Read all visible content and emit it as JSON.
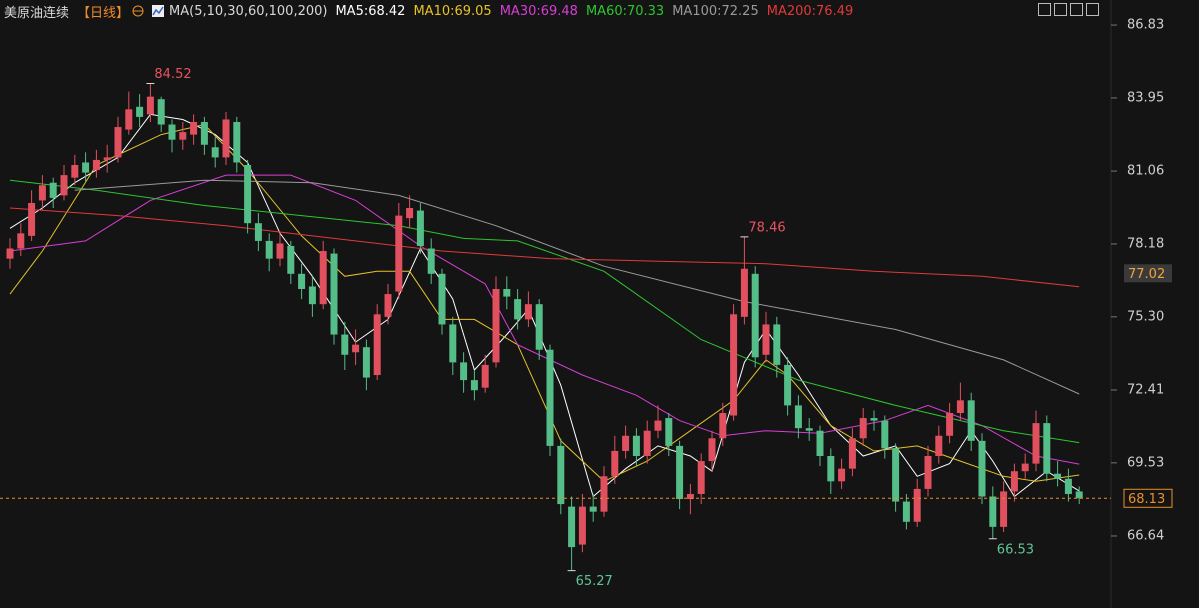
{
  "header": {
    "symbol": "美原油连续",
    "period": "【日线】",
    "ma_params": "MA(5,10,30,60,100,200)"
  },
  "chart_data": {
    "type": "candlestick",
    "up_color": "#e0505e",
    "down_color": "#55bd88",
    "ylim": [
      64.11,
      87.03
    ],
    "yticks": [
      86.83,
      83.95,
      81.06,
      78.18,
      {
        "value": 75.3,
        "label": "75.30"
      },
      72.41,
      69.53,
      66.64
    ],
    "last_price": 68.13,
    "last_color": "#e8902a",
    "axis_marker": 77.02,
    "candles": [
      [
        77.6,
        78.4,
        77.2,
        78.0
      ],
      [
        78.0,
        79.0,
        77.7,
        78.6
      ],
      [
        78.5,
        80.3,
        78.3,
        79.8
      ],
      [
        79.9,
        80.9,
        79.5,
        80.5
      ],
      [
        80.6,
        80.8,
        79.6,
        80.0
      ],
      [
        80.1,
        81.3,
        79.9,
        80.9
      ],
      [
        80.8,
        81.7,
        80.5,
        81.3
      ],
      [
        81.4,
        81.8,
        80.6,
        81.0
      ],
      [
        81.1,
        81.9,
        80.8,
        81.5
      ],
      [
        81.5,
        82.1,
        81.0,
        81.6
      ],
      [
        81.6,
        83.2,
        81.4,
        82.8
      ],
      [
        82.7,
        84.2,
        82.5,
        83.5
      ],
      [
        83.6,
        84.1,
        82.8,
        83.2
      ],
      [
        83.3,
        84.52,
        83.0,
        84.0
      ],
      [
        83.9,
        84.0,
        82.6,
        82.9
      ],
      [
        82.9,
        83.1,
        81.8,
        82.3
      ],
      [
        82.3,
        83.0,
        81.9,
        82.6
      ],
      [
        82.5,
        83.3,
        82.1,
        83.0
      ],
      [
        83.0,
        83.2,
        81.7,
        82.1
      ],
      [
        82.0,
        82.4,
        81.2,
        81.6
      ],
      [
        81.6,
        83.4,
        81.3,
        83.1
      ],
      [
        83.0,
        83.2,
        81.0,
        81.4
      ],
      [
        81.3,
        81.5,
        78.6,
        79.0
      ],
      [
        79.0,
        79.4,
        77.9,
        78.3
      ],
      [
        78.3,
        78.6,
        77.1,
        77.6
      ],
      [
        77.6,
        78.6,
        77.3,
        78.2
      ],
      [
        78.1,
        78.3,
        76.6,
        77.0
      ],
      [
        77.0,
        77.4,
        76.0,
        76.4
      ],
      [
        76.5,
        76.9,
        75.3,
        75.8
      ],
      [
        75.8,
        78.3,
        75.6,
        77.9
      ],
      [
        77.8,
        78.0,
        74.2,
        74.6
      ],
      [
        74.6,
        75.1,
        73.2,
        73.8
      ],
      [
        73.9,
        74.8,
        73.4,
        74.2
      ],
      [
        74.1,
        74.4,
        72.4,
        72.9
      ],
      [
        73.0,
        75.8,
        72.8,
        75.4
      ],
      [
        75.3,
        76.6,
        75.0,
        76.2
      ],
      [
        76.3,
        79.8,
        76.0,
        79.3
      ],
      [
        79.2,
        80.1,
        78.8,
        79.6
      ],
      [
        79.5,
        79.8,
        77.8,
        78.1
      ],
      [
        78.0,
        78.4,
        76.6,
        77.0
      ],
      [
        77.0,
        77.2,
        74.6,
        75.0
      ],
      [
        75.0,
        75.3,
        73.0,
        73.5
      ],
      [
        73.5,
        73.9,
        72.3,
        72.8
      ],
      [
        72.8,
        73.2,
        72.0,
        72.4
      ],
      [
        72.5,
        73.8,
        72.3,
        73.4
      ],
      [
        73.5,
        76.9,
        73.3,
        76.4
      ],
      [
        76.4,
        76.9,
        75.6,
        76.1
      ],
      [
        76.0,
        76.4,
        74.8,
        75.2
      ],
      [
        75.2,
        76.3,
        74.9,
        75.8
      ],
      [
        75.8,
        76.0,
        73.6,
        74.0
      ],
      [
        74.0,
        74.2,
        69.8,
        70.2
      ],
      [
        70.2,
        70.5,
        67.5,
        67.9
      ],
      [
        67.8,
        68.2,
        65.27,
        66.2
      ],
      [
        66.3,
        68.3,
        66.0,
        67.8
      ],
      [
        67.8,
        68.3,
        67.2,
        67.6
      ],
      [
        67.6,
        69.4,
        67.4,
        69.0
      ],
      [
        69.0,
        70.6,
        68.7,
        70.0
      ],
      [
        70.0,
        71.0,
        69.7,
        70.6
      ],
      [
        70.6,
        70.9,
        69.4,
        69.8
      ],
      [
        69.8,
        71.2,
        69.5,
        70.8
      ],
      [
        70.8,
        71.8,
        70.5,
        71.2
      ],
      [
        71.3,
        71.5,
        69.8,
        70.2
      ],
      [
        70.2,
        70.4,
        67.7,
        68.1
      ],
      [
        68.1,
        68.7,
        67.5,
        68.3
      ],
      [
        68.3,
        69.9,
        67.9,
        69.6
      ],
      [
        69.6,
        70.8,
        69.2,
        70.5
      ],
      [
        70.5,
        71.9,
        70.2,
        71.5
      ],
      [
        71.4,
        75.8,
        71.2,
        75.4
      ],
      [
        75.3,
        78.46,
        75.0,
        77.2
      ],
      [
        77.0,
        77.3,
        73.3,
        73.7
      ],
      [
        73.8,
        75.5,
        73.5,
        75.0
      ],
      [
        75.0,
        75.3,
        72.9,
        73.4
      ],
      [
        73.4,
        73.7,
        71.4,
        71.8
      ],
      [
        71.8,
        72.2,
        70.5,
        70.9
      ],
      [
        70.9,
        71.3,
        70.4,
        70.8
      ],
      [
        70.8,
        71.0,
        69.4,
        69.8
      ],
      [
        69.8,
        70.1,
        68.3,
        68.8
      ],
      [
        68.8,
        69.7,
        68.5,
        69.3
      ],
      [
        69.3,
        70.9,
        69.0,
        70.5
      ],
      [
        70.5,
        71.7,
        70.2,
        71.3
      ],
      [
        71.3,
        71.6,
        70.8,
        71.2
      ],
      [
        71.2,
        71.4,
        69.7,
        70.1
      ],
      [
        70.1,
        70.3,
        67.6,
        68.0
      ],
      [
        68.0,
        68.3,
        66.9,
        67.2
      ],
      [
        67.2,
        68.9,
        67.0,
        68.5
      ],
      [
        68.5,
        70.2,
        68.2,
        69.8
      ],
      [
        69.8,
        71.0,
        69.5,
        70.6
      ],
      [
        70.6,
        71.9,
        70.3,
        71.5
      ],
      [
        71.5,
        72.7,
        71.2,
        72.0
      ],
      [
        72.0,
        72.3,
        70.0,
        70.4
      ],
      [
        70.4,
        70.7,
        67.9,
        68.2
      ],
      [
        68.2,
        68.6,
        66.53,
        67.0
      ],
      [
        67.0,
        68.8,
        66.8,
        68.4
      ],
      [
        68.4,
        69.5,
        68.0,
        69.2
      ],
      [
        69.2,
        69.9,
        68.9,
        69.5
      ],
      [
        69.5,
        71.6,
        69.2,
        71.1
      ],
      [
        71.1,
        71.4,
        68.8,
        69.1
      ],
      [
        69.1,
        69.6,
        68.6,
        68.9
      ],
      [
        68.9,
        69.3,
        68.0,
        68.3
      ],
      [
        68.4,
        68.6,
        67.9,
        68.13
      ]
    ],
    "series": [
      {
        "name": "MA5:68.42",
        "color": "#ffffff",
        "x": [
          0,
          3,
          6,
          10,
          13,
          16,
          19,
          22,
          25,
          28,
          32,
          35,
          38,
          41,
          43,
          46,
          48,
          51,
          54,
          57,
          60,
          63,
          65,
          68,
          70,
          73,
          76,
          79,
          82,
          84,
          87,
          89,
          91,
          93,
          96,
          99
        ],
        "values": [
          78.8,
          79.6,
          80.6,
          81.6,
          83.3,
          83.1,
          82.5,
          81.4,
          78.6,
          76.9,
          74.3,
          75.2,
          78.0,
          76.0,
          73.2,
          74.6,
          75.6,
          72.6,
          68.2,
          69.3,
          70.2,
          69.8,
          69.2,
          73.5,
          74.8,
          73.0,
          71.0,
          69.8,
          70.2,
          69.0,
          69.5,
          70.8,
          69.6,
          68.2,
          69.2,
          68.42
        ]
      },
      {
        "name": "MA10:69.05",
        "color": "#e6c229",
        "x": [
          0,
          3,
          8,
          14,
          18,
          22,
          27,
          31,
          34,
          37,
          40,
          43,
          47,
          51,
          55,
          59,
          63,
          67,
          70,
          72,
          76,
          80,
          84,
          88,
          92,
          95,
          99
        ],
        "values": [
          76.2,
          77.9,
          81.3,
          82.5,
          82.9,
          81.1,
          78.5,
          76.9,
          77.1,
          77.1,
          75.2,
          75.2,
          74.2,
          70.4,
          68.8,
          69.6,
          70.8,
          72.0,
          73.6,
          73.0,
          71.0,
          70.0,
          70.2,
          69.6,
          69.0,
          68.8,
          69.05
        ]
      },
      {
        "name": "MA30:69.48",
        "color": "#d63fd6",
        "x": [
          0,
          7,
          13,
          20,
          26,
          32,
          38,
          44,
          47,
          53,
          58,
          62,
          66,
          70,
          75,
          81,
          85,
          90,
          95,
          99
        ],
        "values": [
          77.9,
          78.3,
          79.9,
          80.9,
          80.9,
          79.9,
          78.1,
          76.6,
          74.2,
          73.0,
          72.2,
          71.2,
          70.6,
          70.8,
          70.7,
          71.2,
          71.8,
          71.0,
          69.8,
          69.48
        ]
      },
      {
        "name": "MA60:70.33",
        "color": "#2fc52f",
        "x": [
          0,
          8,
          18,
          27,
          36,
          42,
          47,
          55,
          64,
          73,
          82,
          92,
          99
        ],
        "values": [
          80.7,
          80.3,
          79.7,
          79.3,
          78.9,
          78.4,
          78.3,
          77.1,
          74.4,
          72.8,
          71.8,
          70.8,
          70.33
        ]
      },
      {
        "name": "MA100:72.25",
        "color": "#9a9a9a",
        "x": [
          6,
          18,
          28,
          36,
          45,
          55,
          68,
          82,
          92,
          99
        ],
        "values": [
          80.3,
          80.7,
          80.6,
          80.1,
          78.9,
          77.3,
          75.9,
          74.8,
          73.6,
          72.25
        ]
      },
      {
        "name": "MA200:76.49",
        "color": "#e03a3a",
        "x": [
          0,
          10,
          20,
          30,
          40,
          50,
          60,
          70,
          80,
          90,
          99
        ],
        "values": [
          79.6,
          79.3,
          78.9,
          78.4,
          77.9,
          77.6,
          77.5,
          77.4,
          77.1,
          76.9,
          76.49
        ]
      }
    ]
  }
}
